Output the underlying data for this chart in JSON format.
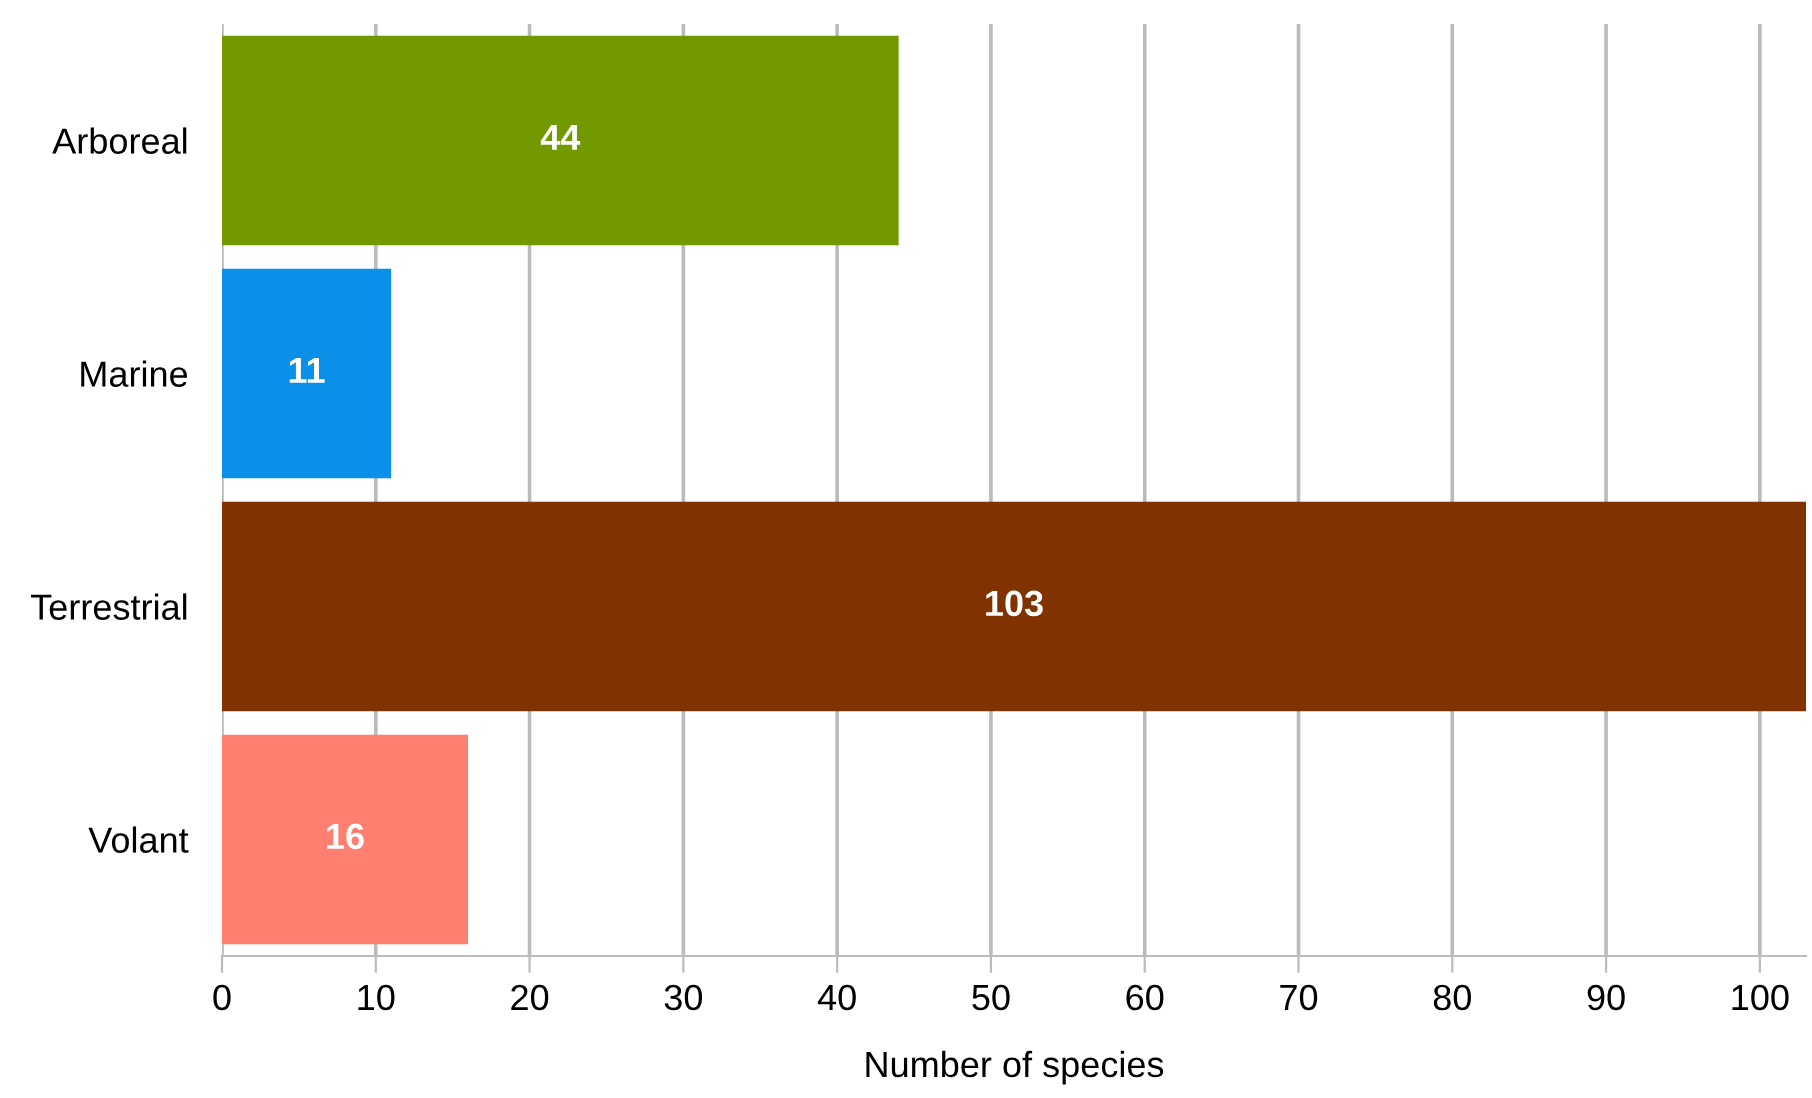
{
  "chart_data": {
    "type": "bar",
    "orientation": "horizontal",
    "xlabel": "Number of species",
    "categories": [
      "Arboreal",
      "Marine",
      "Terrestrial",
      "Volant"
    ],
    "values": [
      44,
      11,
      103,
      16
    ],
    "colors": [
      "#739900",
      "#0a90e8",
      "#803300",
      "#ff8070"
    ],
    "xlim": [
      0,
      103
    ],
    "xticks": [
      0,
      10,
      20,
      30,
      40,
      50,
      60,
      70,
      80,
      90,
      100
    ],
    "grid": "x",
    "data_labels": true
  }
}
